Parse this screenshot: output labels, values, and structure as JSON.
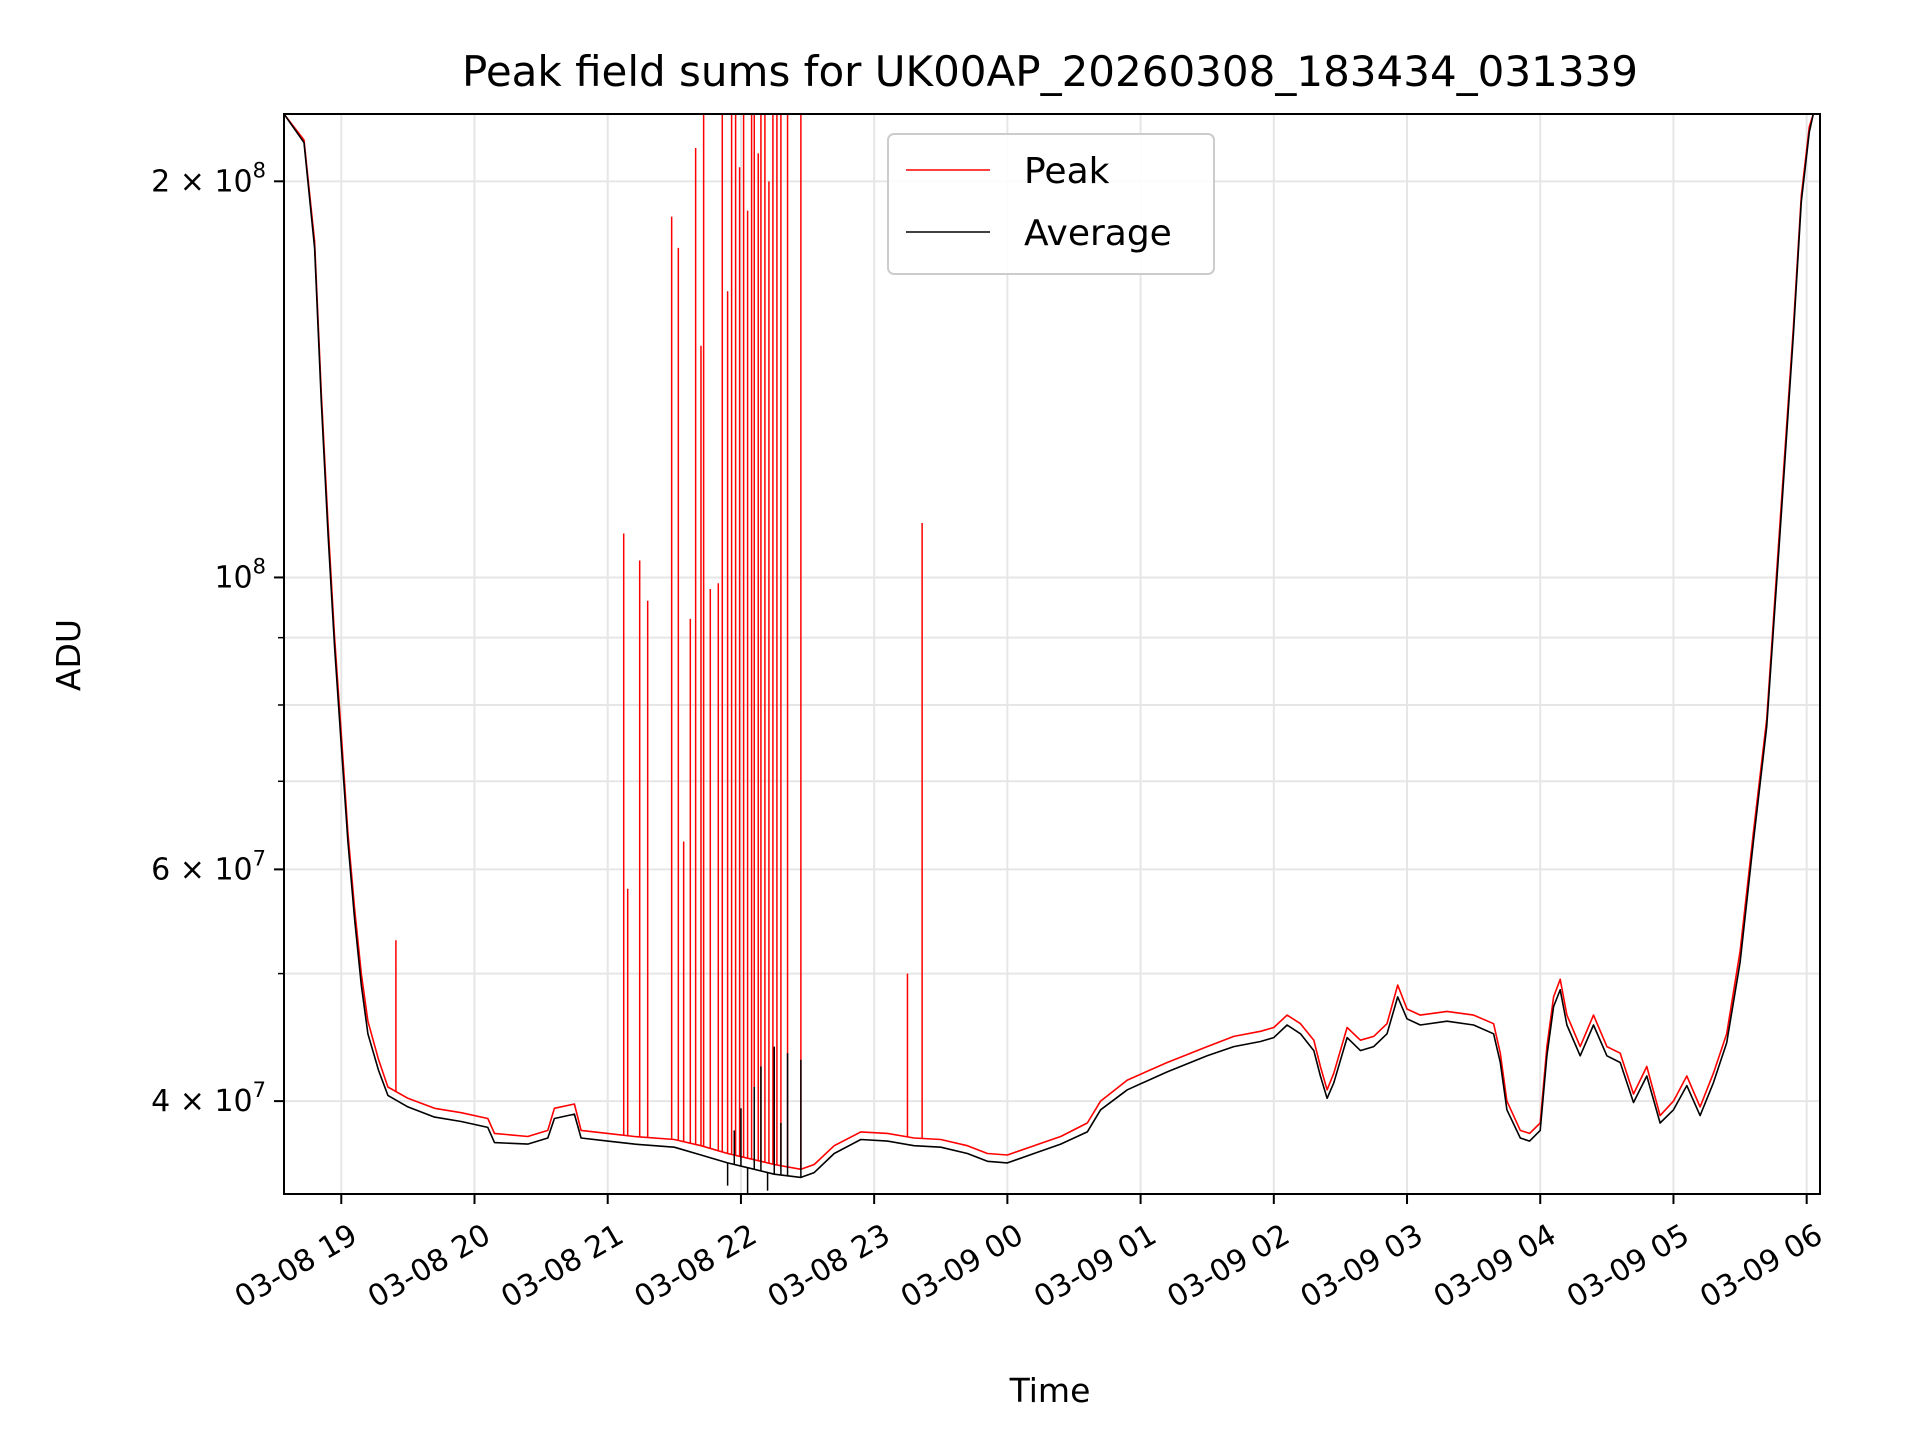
{
  "chart_data": {
    "type": "line",
    "title": "Peak field sums for UK00AP_20260308_183434_031339",
    "xlabel": "Time",
    "ylabel": "ADU",
    "yscale": "log",
    "ylim": [
      34000000,
      225000000
    ],
    "xlim_hours": [
      18.57,
      30.1
    ],
    "grid": true,
    "legend_position": "top-center",
    "x_ticks": [
      {
        "hour": 19,
        "label": "03-08 19"
      },
      {
        "hour": 20,
        "label": "03-08 20"
      },
      {
        "hour": 21,
        "label": "03-08 21"
      },
      {
        "hour": 22,
        "label": "03-08 22"
      },
      {
        "hour": 23,
        "label": "03-08 23"
      },
      {
        "hour": 24,
        "label": "03-09 00"
      },
      {
        "hour": 25,
        "label": "03-09 01"
      },
      {
        "hour": 26,
        "label": "03-09 02"
      },
      {
        "hour": 27,
        "label": "03-09 03"
      },
      {
        "hour": 28,
        "label": "03-09 04"
      },
      {
        "hour": 29,
        "label": "03-09 05"
      },
      {
        "hour": 30,
        "label": "03-09 06"
      }
    ],
    "y_ticks": [
      {
        "value": 40000000,
        "base": "4",
        "exp": "7"
      },
      {
        "value": 60000000,
        "base": "6",
        "exp": "7"
      },
      {
        "value": 100000000,
        "base": "",
        "exp": "8"
      },
      {
        "value": 200000000,
        "base": "2",
        "exp": "8"
      }
    ],
    "y_minor_ticks": [
      50000000,
      70000000,
      80000000,
      90000000
    ],
    "series": [
      {
        "name": "Peak",
        "color": "#ff0000",
        "points": [
          [
            18.57,
            225000000
          ],
          [
            18.72,
            215000000
          ],
          [
            18.8,
            180000000
          ],
          [
            18.85,
            138000000
          ],
          [
            18.9,
            110000000
          ],
          [
            18.95,
            90000000
          ],
          [
            19.0,
            76000000
          ],
          [
            19.05,
            64000000
          ],
          [
            19.1,
            56000000
          ],
          [
            19.15,
            50000000
          ],
          [
            19.2,
            46000000
          ],
          [
            19.28,
            43000000
          ],
          [
            19.35,
            41000000
          ],
          [
            19.5,
            40200000
          ],
          [
            19.7,
            39500000
          ],
          [
            19.9,
            39200000
          ],
          [
            20.1,
            38800000
          ],
          [
            20.15,
            37800000
          ],
          [
            20.4,
            37600000
          ],
          [
            20.55,
            38000000
          ],
          [
            20.6,
            39500000
          ],
          [
            20.75,
            39800000
          ],
          [
            20.8,
            38000000
          ],
          [
            21.0,
            37800000
          ],
          [
            21.2,
            37600000
          ],
          [
            21.5,
            37400000
          ],
          [
            21.7,
            37000000
          ],
          [
            21.9,
            36500000
          ],
          [
            22.05,
            36200000
          ],
          [
            22.25,
            35800000
          ],
          [
            22.45,
            35500000
          ],
          [
            22.55,
            35800000
          ],
          [
            22.7,
            37000000
          ],
          [
            22.9,
            37900000
          ],
          [
            23.1,
            37800000
          ],
          [
            23.3,
            37500000
          ],
          [
            23.5,
            37400000
          ],
          [
            23.7,
            37000000
          ],
          [
            23.85,
            36500000
          ],
          [
            24.0,
            36400000
          ],
          [
            24.2,
            37000000
          ],
          [
            24.4,
            37600000
          ],
          [
            24.6,
            38500000
          ],
          [
            24.7,
            40000000
          ],
          [
            24.9,
            41500000
          ],
          [
            25.2,
            42800000
          ],
          [
            25.5,
            44000000
          ],
          [
            25.7,
            44800000
          ],
          [
            25.9,
            45200000
          ],
          [
            26.0,
            45500000
          ],
          [
            26.1,
            46500000
          ],
          [
            26.2,
            45800000
          ],
          [
            26.3,
            44500000
          ],
          [
            26.35,
            42500000
          ],
          [
            26.4,
            40800000
          ],
          [
            26.45,
            42000000
          ],
          [
            26.55,
            45500000
          ],
          [
            26.65,
            44500000
          ],
          [
            26.75,
            44800000
          ],
          [
            26.85,
            45800000
          ],
          [
            26.93,
            49000000
          ],
          [
            27.0,
            47000000
          ],
          [
            27.1,
            46500000
          ],
          [
            27.3,
            46800000
          ],
          [
            27.5,
            46500000
          ],
          [
            27.65,
            45800000
          ],
          [
            27.7,
            43500000
          ],
          [
            27.75,
            40000000
          ],
          [
            27.85,
            38000000
          ],
          [
            27.92,
            37800000
          ],
          [
            28.0,
            38500000
          ],
          [
            28.05,
            44000000
          ],
          [
            28.1,
            48000000
          ],
          [
            28.15,
            49500000
          ],
          [
            28.2,
            46500000
          ],
          [
            28.3,
            44000000
          ],
          [
            28.4,
            46500000
          ],
          [
            28.5,
            44000000
          ],
          [
            28.6,
            43500000
          ],
          [
            28.7,
            40500000
          ],
          [
            28.8,
            42500000
          ],
          [
            28.9,
            39000000
          ],
          [
            29.0,
            40000000
          ],
          [
            29.1,
            41800000
          ],
          [
            29.2,
            39600000
          ],
          [
            29.3,
            42000000
          ],
          [
            29.4,
            45000000
          ],
          [
            29.5,
            52000000
          ],
          [
            29.6,
            64000000
          ],
          [
            29.7,
            78000000
          ],
          [
            29.8,
            110000000
          ],
          [
            29.9,
            155000000
          ],
          [
            29.96,
            195000000
          ],
          [
            30.02,
            220000000
          ],
          [
            30.05,
            225000000
          ]
        ],
        "spikes": [
          [
            19.41,
            53000000
          ],
          [
            21.12,
            108000000
          ],
          [
            21.15,
            58000000
          ],
          [
            21.24,
            103000000
          ],
          [
            21.3,
            96000000
          ],
          [
            21.48,
            188000000
          ],
          [
            21.53,
            178000000
          ],
          [
            21.57,
            63000000
          ],
          [
            21.62,
            93000000
          ],
          [
            21.66,
            212000000
          ],
          [
            21.7,
            150000000
          ],
          [
            21.72,
            225000000
          ],
          [
            21.77,
            98000000
          ],
          [
            21.83,
            99000000
          ],
          [
            21.86,
            225000000
          ],
          [
            21.9,
            165000000
          ],
          [
            21.93,
            225000000
          ],
          [
            21.96,
            225000000
          ],
          [
            21.99,
            205000000
          ],
          [
            22.02,
            225000000
          ],
          [
            22.05,
            190000000
          ],
          [
            22.08,
            225000000
          ],
          [
            22.1,
            225000000
          ],
          [
            22.13,
            210000000
          ],
          [
            22.15,
            225000000
          ],
          [
            22.18,
            225000000
          ],
          [
            22.21,
            200000000
          ],
          [
            22.24,
            225000000
          ],
          [
            22.27,
            225000000
          ],
          [
            22.3,
            225000000
          ],
          [
            22.35,
            225000000
          ],
          [
            22.45,
            225000000
          ],
          [
            23.25,
            50000000
          ],
          [
            23.36,
            110000000
          ]
        ]
      },
      {
        "name": "Average",
        "color": "#000000",
        "points": [
          [
            18.57,
            225000000
          ],
          [
            18.72,
            214000000
          ],
          [
            18.8,
            178000000
          ],
          [
            18.85,
            136000000
          ],
          [
            18.9,
            108000000
          ],
          [
            18.95,
            88500000
          ],
          [
            19.0,
            74500000
          ],
          [
            19.05,
            63000000
          ],
          [
            19.1,
            55000000
          ],
          [
            19.15,
            49000000
          ],
          [
            19.2,
            45000000
          ],
          [
            19.28,
            42200000
          ],
          [
            19.35,
            40400000
          ],
          [
            19.5,
            39600000
          ],
          [
            19.7,
            38900000
          ],
          [
            19.9,
            38600000
          ],
          [
            20.1,
            38200000
          ],
          [
            20.15,
            37200000
          ],
          [
            20.4,
            37100000
          ],
          [
            20.55,
            37500000
          ],
          [
            20.6,
            38800000
          ],
          [
            20.75,
            39100000
          ],
          [
            20.8,
            37500000
          ],
          [
            21.0,
            37300000
          ],
          [
            21.2,
            37100000
          ],
          [
            21.5,
            36900000
          ],
          [
            21.7,
            36400000
          ],
          [
            21.9,
            35900000
          ],
          [
            22.05,
            35600000
          ],
          [
            22.25,
            35200000
          ],
          [
            22.45,
            35000000
          ],
          [
            22.55,
            35300000
          ],
          [
            22.7,
            36500000
          ],
          [
            22.9,
            37400000
          ],
          [
            23.1,
            37300000
          ],
          [
            23.3,
            37000000
          ],
          [
            23.5,
            36900000
          ],
          [
            23.7,
            36500000
          ],
          [
            23.85,
            36000000
          ],
          [
            24.0,
            35900000
          ],
          [
            24.2,
            36500000
          ],
          [
            24.4,
            37100000
          ],
          [
            24.6,
            37900000
          ],
          [
            24.7,
            39400000
          ],
          [
            24.9,
            40800000
          ],
          [
            25.2,
            42100000
          ],
          [
            25.5,
            43300000
          ],
          [
            25.7,
            44000000
          ],
          [
            25.9,
            44400000
          ],
          [
            26.0,
            44700000
          ],
          [
            26.1,
            45700000
          ],
          [
            26.2,
            45000000
          ],
          [
            26.3,
            43700000
          ],
          [
            26.35,
            41800000
          ],
          [
            26.4,
            40200000
          ],
          [
            26.45,
            41300000
          ],
          [
            26.55,
            44700000
          ],
          [
            26.65,
            43700000
          ],
          [
            26.75,
            44000000
          ],
          [
            26.85,
            45000000
          ],
          [
            26.93,
            48000000
          ],
          [
            27.0,
            46200000
          ],
          [
            27.1,
            45700000
          ],
          [
            27.3,
            46000000
          ],
          [
            27.5,
            45700000
          ],
          [
            27.65,
            45000000
          ],
          [
            27.7,
            42800000
          ],
          [
            27.75,
            39400000
          ],
          [
            27.85,
            37500000
          ],
          [
            27.92,
            37300000
          ],
          [
            28.0,
            38000000
          ],
          [
            28.05,
            43300000
          ],
          [
            28.1,
            47200000
          ],
          [
            28.15,
            48600000
          ],
          [
            28.2,
            45700000
          ],
          [
            28.3,
            43300000
          ],
          [
            28.4,
            45700000
          ],
          [
            28.5,
            43300000
          ],
          [
            28.6,
            42800000
          ],
          [
            28.7,
            39900000
          ],
          [
            28.8,
            41800000
          ],
          [
            28.9,
            38500000
          ],
          [
            29.0,
            39400000
          ],
          [
            29.1,
            41100000
          ],
          [
            29.2,
            39000000
          ],
          [
            29.3,
            41300000
          ],
          [
            29.4,
            44300000
          ],
          [
            29.5,
            51000000
          ],
          [
            29.6,
            63000000
          ],
          [
            29.7,
            77000000
          ],
          [
            29.8,
            108000000
          ],
          [
            29.9,
            153000000
          ],
          [
            29.96,
            193000000
          ],
          [
            30.02,
            218000000
          ],
          [
            30.05,
            225000000
          ]
        ],
        "spikes": [
          [
            21.9,
            34500000
          ],
          [
            21.95,
            38000000
          ],
          [
            22.0,
            39500000
          ],
          [
            22.05,
            34000000
          ],
          [
            22.1,
            41000000
          ],
          [
            22.15,
            42500000
          ],
          [
            22.2,
            34200000
          ],
          [
            22.25,
            44000000
          ],
          [
            22.3,
            38500000
          ],
          [
            22.35,
            43500000
          ],
          [
            22.45,
            43000000
          ]
        ]
      }
    ]
  }
}
